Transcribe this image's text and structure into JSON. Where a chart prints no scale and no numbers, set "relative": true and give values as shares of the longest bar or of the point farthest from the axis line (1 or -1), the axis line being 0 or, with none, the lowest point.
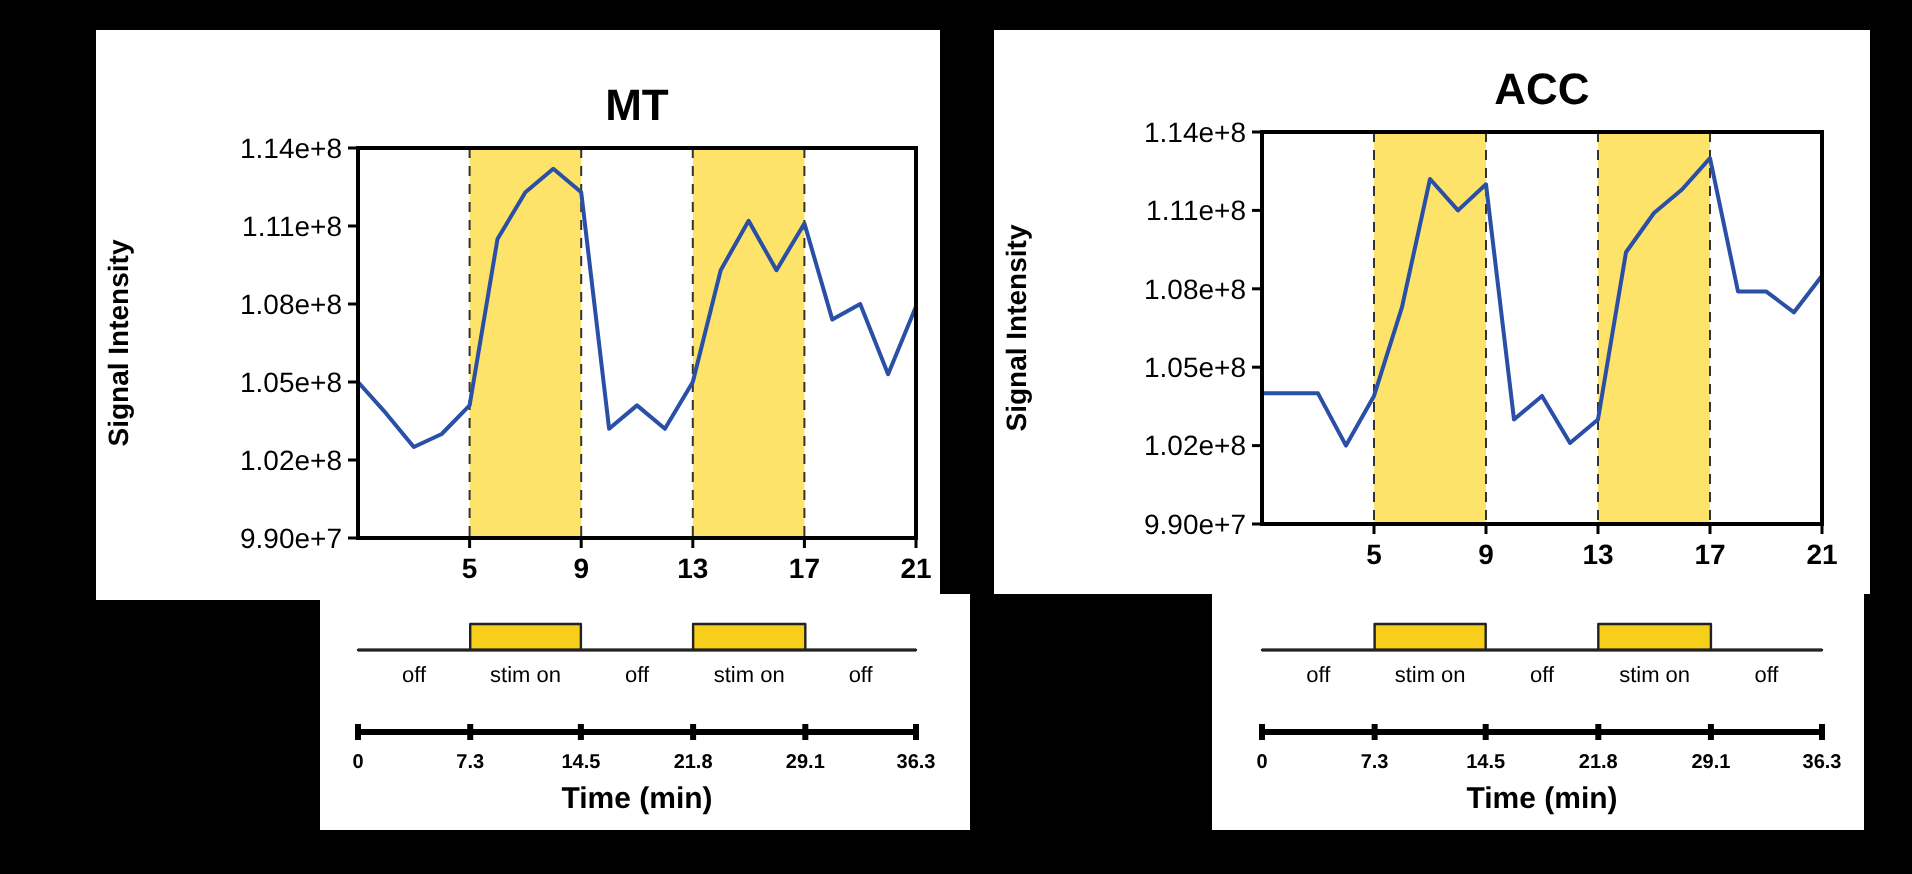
{
  "chart_data": [
    {
      "type": "line",
      "title": "MT",
      "ylabel": "Signal Intensity",
      "color": "#2a4fa6",
      "grid": "x",
      "x": [
        1,
        2,
        3,
        4,
        5,
        6,
        7,
        8,
        9,
        10,
        11,
        12,
        13,
        14,
        15,
        16,
        17,
        18,
        19,
        20,
        21
      ],
      "values": [
        105000000,
        103800000,
        102500000,
        103000000,
        104100000,
        110500000,
        112300000,
        113200000,
        112300000,
        103200000,
        104100000,
        103200000,
        105000000,
        109300000,
        111200000,
        109300000,
        111100000,
        107400000,
        108000000,
        105300000,
        107900000
      ],
      "xlim": [
        1,
        21
      ],
      "xticks": [
        5,
        9,
        13,
        17,
        21
      ],
      "ylim": [
        99000000,
        114000000
      ],
      "yticks": [
        {
          "value": 99000000,
          "label": "9.90e+7"
        },
        {
          "value": 102000000,
          "label": "1.02e+8"
        },
        {
          "value": 105000000,
          "label": "1.05e+8"
        },
        {
          "value": 108000000,
          "label": "1.08e+8"
        },
        {
          "value": 111000000,
          "label": "1.11e+8"
        },
        {
          "value": 114000000,
          "label": "1.14e+8"
        }
      ],
      "bands": [
        {
          "axis": "x",
          "from": 5,
          "to": 9,
          "color": "#fde36a"
        },
        {
          "axis": "x",
          "from": 13,
          "to": 17,
          "color": "#fde36a"
        }
      ]
    },
    {
      "type": "area",
      "relative": true,
      "xlabel": "Time (min)",
      "color": "#f7cf1a",
      "x": [
        0,
        7.3,
        7.3,
        14.5,
        14.5,
        21.8,
        21.8,
        29.1,
        29.1,
        36.3
      ],
      "values": [
        0,
        0,
        1,
        1,
        0,
        0,
        1,
        1,
        0,
        0
      ],
      "xlim": [
        0,
        36.3
      ],
      "xticks": [
        0,
        7.3,
        14.5,
        21.8,
        29.1,
        36.3
      ],
      "annotations": [
        "off",
        "stim on",
        "off",
        "stim on",
        "off"
      ]
    },
    {
      "type": "line",
      "title": "ACC",
      "ylabel": "Signal Intensity",
      "color": "#2a4fa6",
      "grid": "x",
      "x": [
        1,
        2,
        3,
        4,
        5,
        6,
        7,
        8,
        9,
        10,
        11,
        12,
        13,
        14,
        15,
        16,
        17,
        18,
        19,
        20,
        21
      ],
      "values": [
        104000000,
        104000000,
        104000000,
        102000000,
        103900000,
        107300000,
        112200000,
        111000000,
        112000000,
        103000000,
        103900000,
        102100000,
        103000000,
        109400000,
        110900000,
        111800000,
        113000000,
        107900000,
        107900000,
        107100000,
        108500000
      ],
      "xlim": [
        1,
        21
      ],
      "xticks": [
        5,
        9,
        13,
        17,
        21
      ],
      "ylim": [
        99000000,
        114000000
      ],
      "yticks": [
        {
          "value": 99000000,
          "label": "9.90e+7"
        },
        {
          "value": 102000000,
          "label": "1.02e+8"
        },
        {
          "value": 105000000,
          "label": "1.05e+8"
        },
        {
          "value": 108000000,
          "label": "1.08e+8"
        },
        {
          "value": 111000000,
          "label": "1.11e+8"
        },
        {
          "value": 114000000,
          "label": "1.14e+8"
        }
      ],
      "bands": [
        {
          "axis": "x",
          "from": 5,
          "to": 9,
          "color": "#fde36a"
        },
        {
          "axis": "x",
          "from": 13,
          "to": 17,
          "color": "#fde36a"
        }
      ]
    },
    {
      "type": "area",
      "relative": true,
      "xlabel": "Time (min)",
      "color": "#f7cf1a",
      "x": [
        0,
        7.3,
        7.3,
        14.5,
        14.5,
        21.8,
        21.8,
        29.1,
        29.1,
        36.3
      ],
      "values": [
        0,
        0,
        1,
        1,
        0,
        0,
        1,
        1,
        0,
        0
      ],
      "xlim": [
        0,
        36.3
      ],
      "xticks": [
        0,
        7.3,
        14.5,
        21.8,
        29.1,
        36.3
      ],
      "annotations": [
        "off",
        "stim on",
        "off",
        "stim on",
        "off"
      ]
    }
  ]
}
